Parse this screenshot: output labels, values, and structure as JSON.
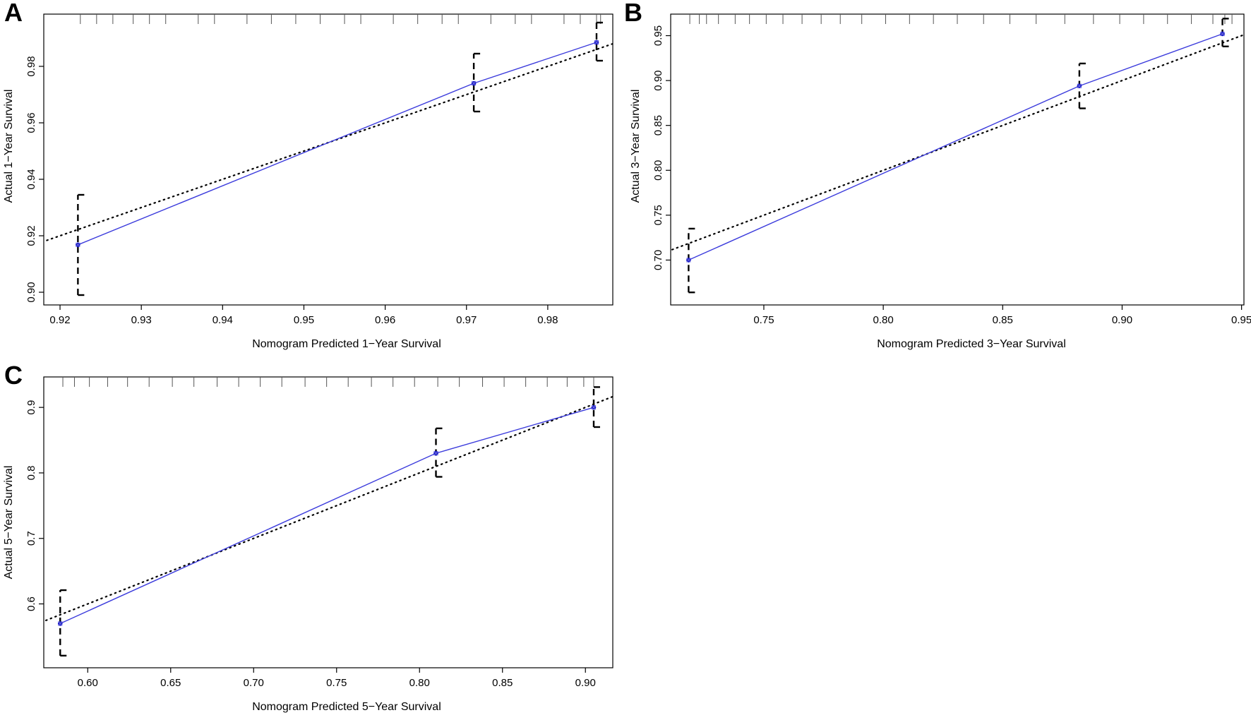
{
  "figure": {
    "colors": {
      "fit_line": "#3b3bdc",
      "fit_point": "#1a1acc",
      "ideal_line": "#000000",
      "error_bar": "#000000"
    }
  },
  "chart_data": [
    {
      "panel": "A",
      "type": "scatter",
      "xlabel": "Nomogram Predicted 1−Year Survival",
      "ylabel": "Actual 1−Year Survival",
      "xlim": [
        0.918,
        0.988
      ],
      "ylim": [
        0.8955,
        0.9985
      ],
      "xticks": [
        0.92,
        0.93,
        0.94,
        0.95,
        0.96,
        0.97,
        0.98
      ],
      "xtick_labels": [
        "0.92",
        "0.93",
        "0.94",
        "0.95",
        "0.96",
        "0.97",
        "0.98"
      ],
      "yticks": [
        0.9,
        0.92,
        0.94,
        0.96,
        0.98
      ],
      "ytick_labels": [
        "0.90",
        "0.92",
        "0.94",
        "0.96",
        "0.98"
      ],
      "rug": [
        0.9225,
        0.9245,
        0.9265,
        0.929,
        0.931,
        0.933,
        0.937,
        0.939,
        0.943,
        0.946,
        0.949,
        0.952,
        0.955,
        0.957,
        0.961,
        0.964,
        0.967,
        0.969,
        0.973,
        0.976,
        0.978,
        0.982,
        0.984,
        0.986,
        0.9865
      ],
      "points": [
        {
          "x": 0.9222,
          "y": 0.9168,
          "lower": 0.899,
          "upper": 0.9345
        },
        {
          "x": 0.9709,
          "y": 0.974,
          "lower": 0.964,
          "upper": 0.9845
        },
        {
          "x": 0.986,
          "y": 0.9885,
          "lower": 0.982,
          "upper": 0.9955
        }
      ],
      "ideal_line": [
        [
          0.9,
          0.9
        ],
        [
          1.0,
          1.0
        ]
      ]
    },
    {
      "panel": "B",
      "type": "scatter",
      "xlabel": "Nomogram Predicted 3−Year Survival",
      "ylabel": "Actual 3−Year Survival",
      "xlim": [
        0.711,
        0.951
      ],
      "ylim": [
        0.65,
        0.974
      ],
      "xticks": [
        0.75,
        0.8,
        0.85,
        0.9,
        0.95
      ],
      "xtick_labels": [
        "0.75",
        "0.80",
        "0.85",
        "0.90",
        "0.95"
      ],
      "yticks": [
        0.7,
        0.75,
        0.8,
        0.85,
        0.9,
        0.95
      ],
      "ytick_labels": [
        "0.70",
        "0.75",
        "0.80",
        "0.85",
        "0.90",
        "0.95"
      ],
      "rug": [
        0.719,
        0.723,
        0.726,
        0.731,
        0.738,
        0.744,
        0.751,
        0.758,
        0.766,
        0.774,
        0.782,
        0.791,
        0.801,
        0.811,
        0.821,
        0.831,
        0.842,
        0.853,
        0.864,
        0.876,
        0.888,
        0.899,
        0.909,
        0.919,
        0.929,
        0.938,
        0.943,
        0.946
      ],
      "points": [
        {
          "x": 0.7185,
          "y": 0.7,
          "lower": 0.664,
          "upper": 0.735
        },
        {
          "x": 0.8821,
          "y": 0.894,
          "lower": 0.869,
          "upper": 0.919
        },
        {
          "x": 0.942,
          "y": 0.952,
          "lower": 0.938,
          "upper": 0.969
        }
      ],
      "ideal_line": [
        [
          0.7,
          0.7
        ],
        [
          1.0,
          1.0
        ]
      ]
    },
    {
      "panel": "C",
      "type": "scatter",
      "xlabel": "Nomogram Predicted 5−Year Survival",
      "ylabel": "Actual 5−Year Survival",
      "xlim": [
        0.5735,
        0.9165
      ],
      "ylim": [
        0.5025,
        0.9465
      ],
      "xticks": [
        0.6,
        0.65,
        0.7,
        0.75,
        0.8,
        0.85,
        0.9
      ],
      "xtick_labels": [
        "0.60",
        "0.65",
        "0.70",
        "0.75",
        "0.80",
        "0.85",
        "0.90"
      ],
      "yticks": [
        0.6,
        0.7,
        0.8,
        0.9
      ],
      "ytick_labels": [
        "0.6",
        "0.7",
        "0.8",
        "0.9"
      ],
      "rug": [
        0.585,
        0.592,
        0.601,
        0.612,
        0.624,
        0.637,
        0.651,
        0.664,
        0.678,
        0.691,
        0.704,
        0.717,
        0.731,
        0.744,
        0.757,
        0.771,
        0.784,
        0.797,
        0.811,
        0.824,
        0.838,
        0.851,
        0.864,
        0.877,
        0.889,
        0.899,
        0.905
      ],
      "points": [
        {
          "x": 0.5834,
          "y": 0.57,
          "lower": 0.521,
          "upper": 0.621
        },
        {
          "x": 0.8099,
          "y": 0.83,
          "lower": 0.794,
          "upper": 0.868
        },
        {
          "x": 0.905,
          "y": 0.9,
          "lower": 0.87,
          "upper": 0.931
        }
      ],
      "ideal_line": [
        [
          0.5,
          0.5
        ],
        [
          1.0,
          1.0
        ]
      ]
    }
  ]
}
